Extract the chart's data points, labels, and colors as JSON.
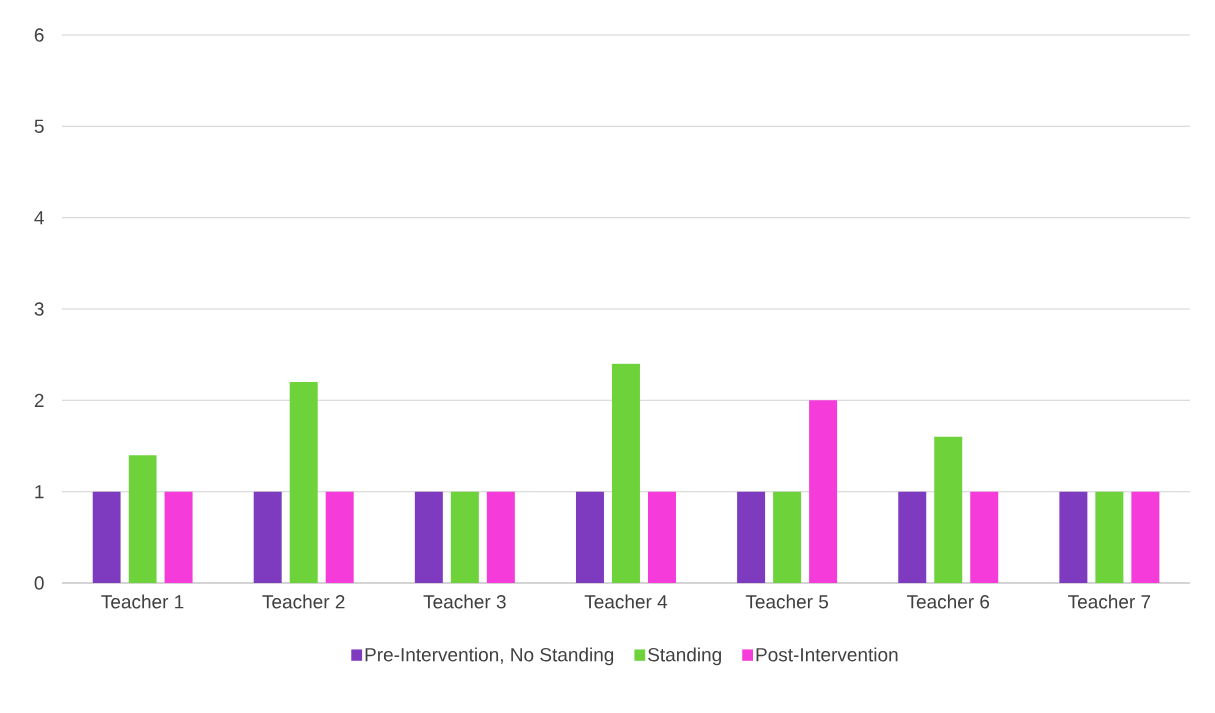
{
  "chart_data": {
    "type": "bar",
    "categories": [
      "Teacher 1",
      "Teacher 2",
      "Teacher 3",
      "Teacher 4",
      "Teacher 5",
      "Teacher 6",
      "Teacher 7"
    ],
    "series": [
      {
        "name": "Pre-Intervention, No Standing",
        "color": "#7f3bbf",
        "values": [
          1,
          1,
          1,
          1,
          1,
          1,
          1
        ]
      },
      {
        "name": "Standing",
        "color": "#6ed23a",
        "values": [
          1.4,
          2.2,
          1,
          2.4,
          1,
          1.6,
          1
        ]
      },
      {
        "name": "Post-Intervention",
        "color": "#f53bd9",
        "values": [
          1,
          1,
          1,
          1,
          2,
          1,
          1
        ]
      }
    ],
    "ylim": [
      0,
      6
    ],
    "yticks": [
      0,
      1,
      2,
      3,
      4,
      5,
      6
    ],
    "grid": "y",
    "legend": "bottom"
  }
}
